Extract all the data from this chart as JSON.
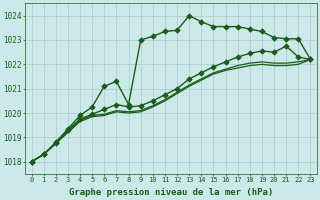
{
  "title": "Graphe pression niveau de la mer (hPa)",
  "bg_color": "#cce8e8",
  "grid_color": "#aacccc",
  "line_color": "#1a5c1a",
  "xlim": [
    -0.5,
    23.5
  ],
  "ylim": [
    1017.5,
    1024.5
  ],
  "yticks": [
    1018,
    1019,
    1020,
    1021,
    1022,
    1023,
    1024
  ],
  "xticks": [
    0,
    1,
    2,
    3,
    4,
    5,
    6,
    7,
    8,
    9,
    10,
    11,
    12,
    13,
    14,
    15,
    16,
    17,
    18,
    19,
    20,
    21,
    22,
    23
  ],
  "series": [
    {
      "y": [
        1018.0,
        1018.3,
        1018.8,
        1019.35,
        1019.9,
        1020.25,
        1021.1,
        1021.3,
        1020.35,
        1023.0,
        1023.15,
        1023.35,
        1023.4,
        1024.0,
        1023.75,
        1023.55,
        1023.55,
        1023.55,
        1023.45,
        1023.35,
        1023.1,
        1023.05,
        1023.05,
        1022.2
      ],
      "style": "solid",
      "marker": "D",
      "markersize": 2.8,
      "linewidth": 1.0,
      "zorder": 5
    },
    {
      "y": [
        1018.0,
        1018.3,
        1018.75,
        1019.3,
        1019.75,
        1019.95,
        1020.15,
        1020.35,
        1020.25,
        1020.3,
        1020.5,
        1020.75,
        1021.0,
        1021.4,
        1021.65,
        1021.9,
        1022.1,
        1022.3,
        1022.45,
        1022.55,
        1022.5,
        1022.75,
        1022.3,
        1022.2
      ],
      "style": "solid",
      "marker": "D",
      "markersize": 2.8,
      "linewidth": 1.0,
      "zorder": 4
    },
    {
      "y": [
        1018.0,
        1018.3,
        1018.75,
        1019.25,
        1019.7,
        1019.9,
        1019.95,
        1020.1,
        1020.05,
        1020.1,
        1020.3,
        1020.55,
        1020.85,
        1021.15,
        1021.4,
        1021.65,
        1021.8,
        1021.95,
        1022.05,
        1022.1,
        1022.05,
        1022.05,
        1022.1,
        1022.2
      ],
      "style": "solid",
      "marker": null,
      "markersize": 0,
      "linewidth": 0.9,
      "zorder": 3
    },
    {
      "y": [
        1018.0,
        1018.3,
        1018.75,
        1019.2,
        1019.65,
        1019.85,
        1019.9,
        1020.05,
        1020.0,
        1020.05,
        1020.25,
        1020.5,
        1020.8,
        1021.1,
        1021.35,
        1021.6,
        1021.75,
        1021.85,
        1021.95,
        1022.0,
        1021.95,
        1021.95,
        1022.0,
        1022.2
      ],
      "style": "solid",
      "marker": null,
      "markersize": 0,
      "linewidth": 0.9,
      "zorder": 2
    }
  ]
}
